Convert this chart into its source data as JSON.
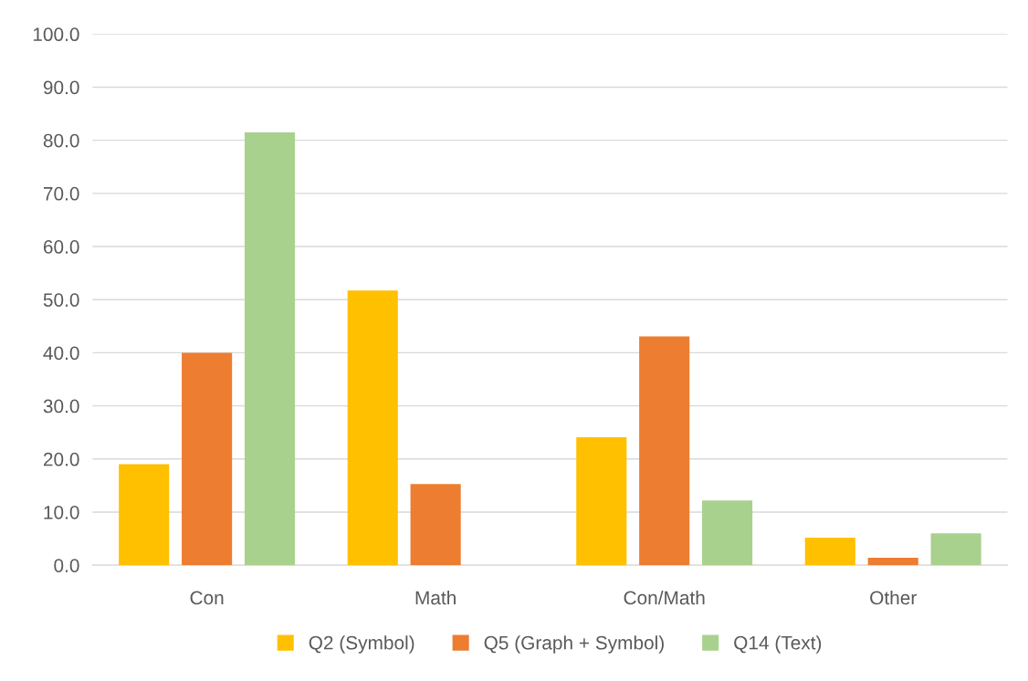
{
  "chart_data": {
    "type": "bar",
    "categories": [
      "Con",
      "Math",
      "Con/Math",
      "Other"
    ],
    "series": [
      {
        "name": "Q2 (Symbol)",
        "color": "#ffc000",
        "values": [
          19.0,
          51.7,
          24.1,
          5.2
        ]
      },
      {
        "name": "Q5 (Graph + Symbol)",
        "color": "#ed7d31",
        "values": [
          40.0,
          15.3,
          43.1,
          1.4
        ]
      },
      {
        "name": "Q14 (Text)",
        "color": "#a9d18e",
        "values": [
          81.5,
          0,
          12.2,
          6.0
        ]
      }
    ],
    "ylim": [
      0,
      100
    ],
    "yticks": [
      {
        "value": 0,
        "label": "0.0"
      },
      {
        "value": 10,
        "label": "10.0"
      },
      {
        "value": 20,
        "label": "20.0"
      },
      {
        "value": 30,
        "label": "30.0"
      },
      {
        "value": 40,
        "label": "40.0"
      },
      {
        "value": 50,
        "label": "50.0"
      },
      {
        "value": 60,
        "label": "60.0"
      },
      {
        "value": 70,
        "label": "70.0"
      },
      {
        "value": 80,
        "label": "80.0"
      },
      {
        "value": 90,
        "label": "90.0"
      },
      {
        "value": 100,
        "label": "100.0"
      }
    ],
    "grid": "y",
    "legend": "bottom"
  }
}
